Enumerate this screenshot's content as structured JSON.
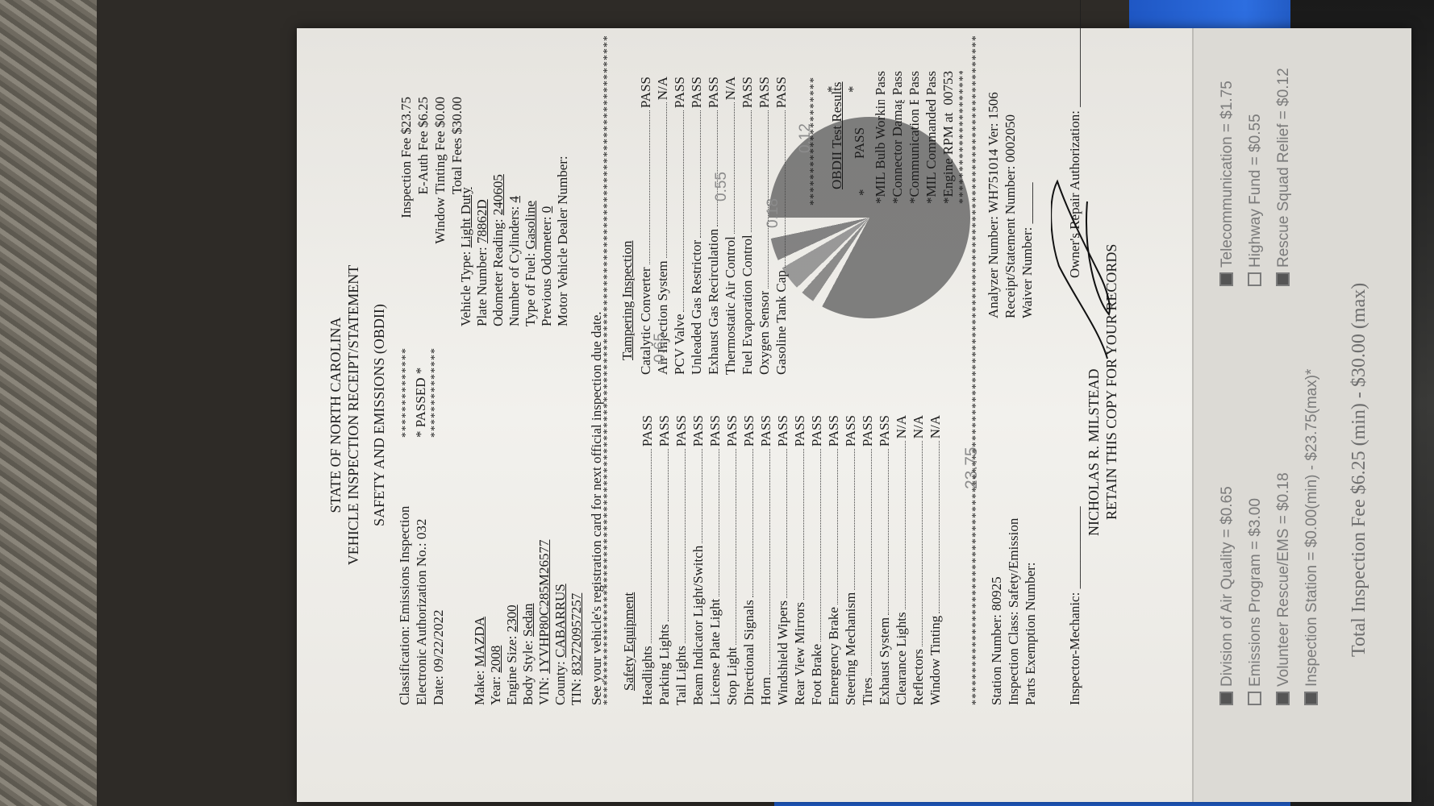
{
  "header": {
    "state": "STATE OF NORTH CAROLINA",
    "title": "VEHICLE INSPECTION RECEIPT/STATEMENT",
    "subtitle": "SAFETY AND EMISSIONS (OBDII)"
  },
  "info": {
    "classification": "Classification:  Emissions Inspection",
    "eauth": "Electronic Authorization No.:  032",
    "date": "Date:  09/22/2022",
    "stars1": "**************",
    "passed": "*   PASSED   *",
    "stars2": "**************"
  },
  "fees": {
    "inspection": "Inspection Fee  $23.75",
    "eauth": "E-Auth Fee    $6.25",
    "tinting": "Window Tinting Fee  $0.00",
    "total": "Total Fees $30.00"
  },
  "vehicle_left": [
    {
      "label": "Make:",
      "value": "MAZDA"
    },
    {
      "label": "Year:",
      "value": "2008"
    },
    {
      "label": "Engine Size:",
      "value": "2300"
    },
    {
      "label": "Body Style:",
      "value": "Sedan"
    },
    {
      "label": "VIN:",
      "value": "1YVHP80C285M26577"
    },
    {
      "label": "County:",
      "value": "CABARRUS"
    },
    {
      "label": "TIN:",
      "value": "832720957257"
    }
  ],
  "vehicle_right": [
    {
      "label": "Vehicle Type:",
      "value": "Light Duty"
    },
    {
      "label": "Plate Number:",
      "value": "78862D"
    },
    {
      "label": "Odometer Reading:",
      "value": "240605"
    },
    {
      "label": "Number of Cylinders:",
      "value": "4"
    },
    {
      "label": "Type of Fuel:",
      "value": "Gasoline"
    },
    {
      "label": "Previous Odometer:",
      "value": "0"
    },
    {
      "label": "Motor Vehicle Dealer Number:",
      "value": ""
    }
  ],
  "registration_note": "See your vehicle's registration card for next official inspection due date.",
  "safety": {
    "title": "Safety Equipment",
    "items": [
      {
        "name": "Headlights",
        "result": "PASS"
      },
      {
        "name": "Parking Lights",
        "result": "PASS"
      },
      {
        "name": "Tail Lights",
        "result": "PASS"
      },
      {
        "name": "Beam Indicator Light/Switch",
        "result": "PASS"
      },
      {
        "name": "License Plate Light",
        "result": "PASS"
      },
      {
        "name": "Stop Light",
        "result": "PASS"
      },
      {
        "name": "Directional Signals",
        "result": "PASS"
      },
      {
        "name": "Horn",
        "result": "PASS"
      },
      {
        "name": "Windshield Wipers",
        "result": "PASS"
      },
      {
        "name": "Rear View Mirrors",
        "result": "PASS"
      },
      {
        "name": "Foot Brake",
        "result": "PASS"
      },
      {
        "name": "Emergency Brake",
        "result": "PASS"
      },
      {
        "name": "Steering Mechanism",
        "result": "PASS"
      },
      {
        "name": "Tires",
        "result": "PASS"
      },
      {
        "name": "Exhaust System",
        "result": "PASS"
      },
      {
        "name": "Clearance Lights",
        "result": "N/A"
      },
      {
        "name": "Reflectors",
        "result": "N/A"
      },
      {
        "name": "Window Tinting",
        "result": "N/A"
      }
    ]
  },
  "tampering": {
    "title": "Tampering Inspection",
    "items": [
      {
        "name": "Catalytic Converter",
        "result": "PASS"
      },
      {
        "name": "Air Injection System",
        "result": "N/A"
      },
      {
        "name": "PCV Valve",
        "result": "PASS"
      },
      {
        "name": "Unleaded Gas Restrictor",
        "result": "PASS"
      },
      {
        "name": "Exhaust Gas Recirculation",
        "result": "PASS"
      },
      {
        "name": "Thermostatic Air Control",
        "result": "N/A"
      },
      {
        "name": "Fuel Evaporation Control",
        "result": "PASS"
      },
      {
        "name": "Oxygen Sensor",
        "result": "PASS"
      },
      {
        "name": "Gasoline Tank Cap",
        "result": "PASS"
      }
    ]
  },
  "obd": {
    "title": "OBDII Test Results",
    "result": "PASS",
    "items": [
      {
        "name": "MIL Bulb Working",
        "result": "Pass"
      },
      {
        "name": "Connector Damage",
        "result": "Pass"
      },
      {
        "name": "Communication Established",
        "result": "Pass"
      },
      {
        "name": "MIL Commanded-On",
        "result": "Pass"
      },
      {
        "name": "Engine RPM at Reading",
        "result": "00753"
      }
    ]
  },
  "station": {
    "station_number": "Station Number:  80925",
    "class": "Inspection Class:  Safety/Emission",
    "exemption": "Parts Exemption Number:",
    "analyzer": "Analyzer Number:  WH751014   Ver: 1506",
    "receipt": "Receipt/Statement Number:  0002050",
    "waiver": "Waiver Number:",
    "mechanic_label": "Inspector-Mechanic:",
    "mechanic_name": "NICHOLAS R. MILSTEAD",
    "owner_auth": "Owner's Repair Authorization:",
    "retain": "RETAIN THIS COPY FOR YOUR RECORDS"
  },
  "overprint": {
    "pcv_val": "0.65",
    "thermo_val": "0.55",
    "oxygen_val": "0.18",
    "tank_val": "0.12",
    "tinting_val": "23.75"
  },
  "distribution": {
    "left": [
      {
        "text": "Division of Air Quality = $0.65",
        "checked": true
      },
      {
        "text": "Emissions  Program = $3.00",
        "checked": false
      },
      {
        "text": "Volunteer Rescue/EMS = $0.18",
        "checked": true
      },
      {
        "text": "Inspection Station = $0.00(min) - $23.75(max)*",
        "checked": true
      }
    ],
    "right": [
      {
        "text": "Telecommunication = $1.75",
        "checked": true
      },
      {
        "text": "Highway Fund = $0.55",
        "checked": false
      },
      {
        "text": "Rescue Squad Relief = $0.12",
        "checked": true
      }
    ],
    "total": "Total Inspection Fee $6.25 (min) - $30.00 (max)"
  },
  "colors": {
    "paper": "#efeeea",
    "ink": "#1d1d1d",
    "blue_folder": "#2d6ee0"
  }
}
